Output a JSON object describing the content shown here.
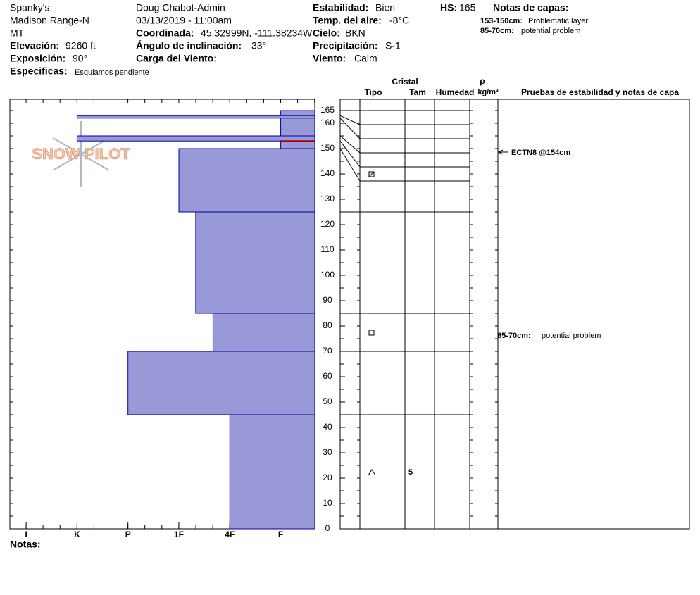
{
  "header": {
    "location": [
      "Spanky's",
      "Madison Range-N",
      "MT"
    ],
    "elevation": {
      "label": "Elevación:",
      "value": "9260 ft"
    },
    "aspect": {
      "label": "Exposición:",
      "value": "90°"
    },
    "specifics": {
      "label": "Especificas:",
      "value": "Esquiamos pendiente"
    },
    "observer": "Doug Chabot-Admin",
    "datetime": "03/13/2019 - 11:00am",
    "coordinates": {
      "label": "Coordinada:",
      "value": "45.32999N, -111.38234W"
    },
    "slope": {
      "label": "Ángulo de inclinación:",
      "value": "33°"
    },
    "wind_loading": {
      "label": "Carga del Viento:"
    },
    "stability": {
      "label": "Estabilidad:",
      "value": "Bien"
    },
    "air_temp": {
      "label": "Temp. del aire:",
      "value": "-8°C"
    },
    "sky": {
      "label": "Cielo:",
      "value": "BKN"
    },
    "precipitation": {
      "label": "Precipitación:",
      "value": "S-1"
    },
    "wind": {
      "label": "Viento:",
      "value": "Calm"
    },
    "hs": {
      "label": "HS:",
      "value": 165
    },
    "layer_notes_title": "Notas de capas:",
    "layer_notes": [
      {
        "range": "153-150cm:",
        "text": "Problematic layer"
      },
      {
        "range": "85-70cm:",
        "text": "potential problem"
      }
    ]
  },
  "logo": "SNOW PILOT",
  "profile": {
    "ylim": [
      0,
      170
    ],
    "yticks": [
      0,
      10,
      20,
      30,
      40,
      50,
      60,
      70,
      80,
      90,
      100,
      110,
      120,
      130,
      140,
      150,
      160,
      165
    ],
    "hlim": [
      -0.32,
      5.67
    ],
    "hardness_ticks": [
      {
        "value": 0,
        "label": "I"
      },
      {
        "value": 1,
        "label": "K"
      },
      {
        "value": 2,
        "label": "P"
      },
      {
        "value": 3,
        "label": "1F"
      },
      {
        "value": 4,
        "label": "4F"
      },
      {
        "value": 5,
        "label": "F"
      }
    ],
    "layers": [
      {
        "top": 165,
        "bottom": 150,
        "hardness": 5
      },
      {
        "top": 163,
        "bottom": 162,
        "hardness": 1
      },
      {
        "top": 155,
        "bottom": 153,
        "hardness": 1
      },
      {
        "top": 150,
        "bottom": 125,
        "hardness": 3
      },
      {
        "top": 125,
        "bottom": 85,
        "hardness": 3.33
      },
      {
        "top": 85,
        "bottom": 70,
        "hardness": 3.67
      },
      {
        "top": 70,
        "bottom": 45,
        "hardness": 2
      },
      {
        "top": 45,
        "bottom": 0,
        "hardness": 4,
        "size": 5
      }
    ],
    "critical_depth": 153,
    "tests": [
      {
        "text": "ECTN8 @154cm",
        "depth": 154
      }
    ]
  },
  "table": {
    "cristal": "Cristal",
    "tipo": "Tipo",
    "tam": "Tam",
    "humedad": "Humedad",
    "rho": "ρ",
    "density_unit": "kg/m³",
    "tests": "Pruebas de estabilidad y notas de capa"
  },
  "footer": {
    "notes": "Notas:"
  }
}
